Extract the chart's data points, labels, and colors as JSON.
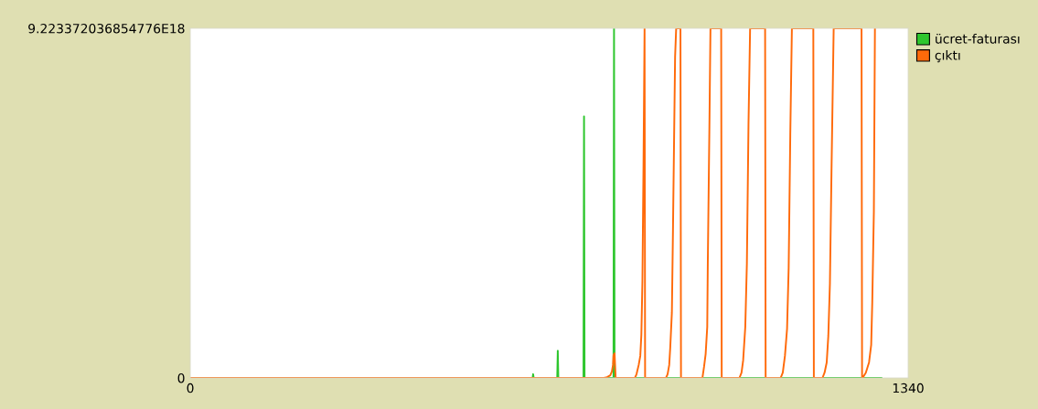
{
  "chart_data": {
    "type": "line",
    "xlim": [
      0,
      1340
    ],
    "xticks": [
      0,
      1340
    ],
    "ylim": [
      0,
      9.223372036854776e+18
    ],
    "yticks": [
      0,
      {
        "value": 9.223372036854776e+18,
        "label": "9.223372036854776E18"
      }
    ],
    "legend": "top right",
    "grid": false,
    "series": [
      {
        "name": "ücret-faturası",
        "color": "#2ec62e",
        "x": [
          0,
          639,
          640,
          641,
          685,
          686,
          687,
          734,
          735,
          736,
          790,
          791,
          792,
          1290
        ],
        "values": [
          0,
          0,
          1e+17,
          0,
          0,
          7.2e+17,
          0,
          0,
          6.9e+18,
          0,
          0,
          9.22e+18,
          0,
          0
        ]
      },
      {
        "name": "çıktı",
        "color": "#ff6a0a",
        "x": [
          0,
          772,
          778,
          784,
          787,
          789,
          790,
          792,
          794,
          830,
          833,
          837,
          840,
          842,
          844,
          846,
          848,
          849,
          888,
          891,
          894,
          896,
          899,
          901,
          905,
          907,
          915,
          916,
          956,
          957,
          959,
          962,
          965,
          966,
          969,
          971,
          991,
          992,
          1025,
          1029,
          1032,
          1036,
          1039,
          1042,
          1045,
          1073,
          1074,
          1102,
          1106,
          1110,
          1114,
          1117,
          1120,
          1123,
          1163,
          1164,
          1180,
          1184,
          1188,
          1191,
          1194,
          1197,
          1201,
          1253,
          1254,
          1255,
          1261,
          1267,
          1271,
          1273,
          1276,
          1278
        ],
        "values": [
          0,
          0,
          2e+16,
          7e+16,
          1.7e+17,
          3.4e+17,
          6e+17,
          6.5e+17,
          0,
          0,
          1e+17,
          3.4e+17,
          5.8e+17,
          1.13e+18,
          2.55e+18,
          5.59e+18,
          9.22e+18,
          0,
          0,
          1e+17,
          3.4e+17,
          8.2e+17,
          1.73e+18,
          3.88e+18,
          8.48e+18,
          9.22e+18,
          9.22e+18,
          0,
          0,
          1e+17,
          2.9e+17,
          6.3e+17,
          1.35e+18,
          2.99e+18,
          6.6e+18,
          9.22e+18,
          9.22e+18,
          0,
          0,
          1.4e+17,
          4.6e+17,
          1.35e+18,
          3.03e+18,
          6.69e+18,
          9.22e+18,
          9.22e+18,
          0,
          0,
          1.4e+17,
          5.8e+17,
          1.3e+18,
          2.91e+18,
          6.41e+18,
          9.22e+18,
          9.22e+18,
          0,
          0,
          1.4e+17,
          4.1e+17,
          1.11e+18,
          2.5e+18,
          5.52e+18,
          9.22e+18,
          9.22e+18,
          0,
          0,
          1.4e+17,
          4.1e+17,
          8.7e+17,
          1.98e+18,
          4.38e+18,
          9.22e+18
        ]
      }
    ]
  }
}
